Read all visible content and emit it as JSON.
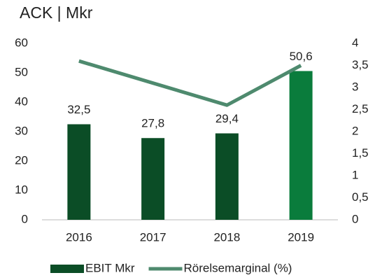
{
  "chart_data": {
    "type": "bar",
    "title": "ACK | Mkr",
    "categories": [
      "2016",
      "2017",
      "2018",
      "2019"
    ],
    "series": [
      {
        "name": "EBIT Mkr",
        "color": "#0b4d26",
        "colors": [
          "#0b4d26",
          "#0b4d26",
          "#0b4d26",
          "#0a7c3c"
        ],
        "values": [
          32.5,
          27.8,
          29.4,
          50.6
        ],
        "value_labels": [
          "32,5",
          "27,8",
          "29,4",
          "50,6"
        ]
      },
      {
        "name": "Rörelsemarginal (%)",
        "color": "#4e8a6e",
        "axis": "y2",
        "values": [
          3.6,
          3.1,
          2.6,
          3.5
        ]
      }
    ],
    "ylim": [
      0,
      60
    ],
    "yticks": [
      0,
      10,
      20,
      30,
      40,
      50,
      60
    ],
    "y2lim": [
      0,
      4
    ],
    "y2ticks": [
      0,
      {
        "value": 0.5,
        "label": "0,5"
      },
      1,
      {
        "value": 1.5,
        "label": "1,5"
      },
      2,
      {
        "value": 2.5,
        "label": "2,5"
      },
      3,
      {
        "value": 3.5,
        "label": "3,5"
      },
      4
    ],
    "legend": "bottom"
  }
}
